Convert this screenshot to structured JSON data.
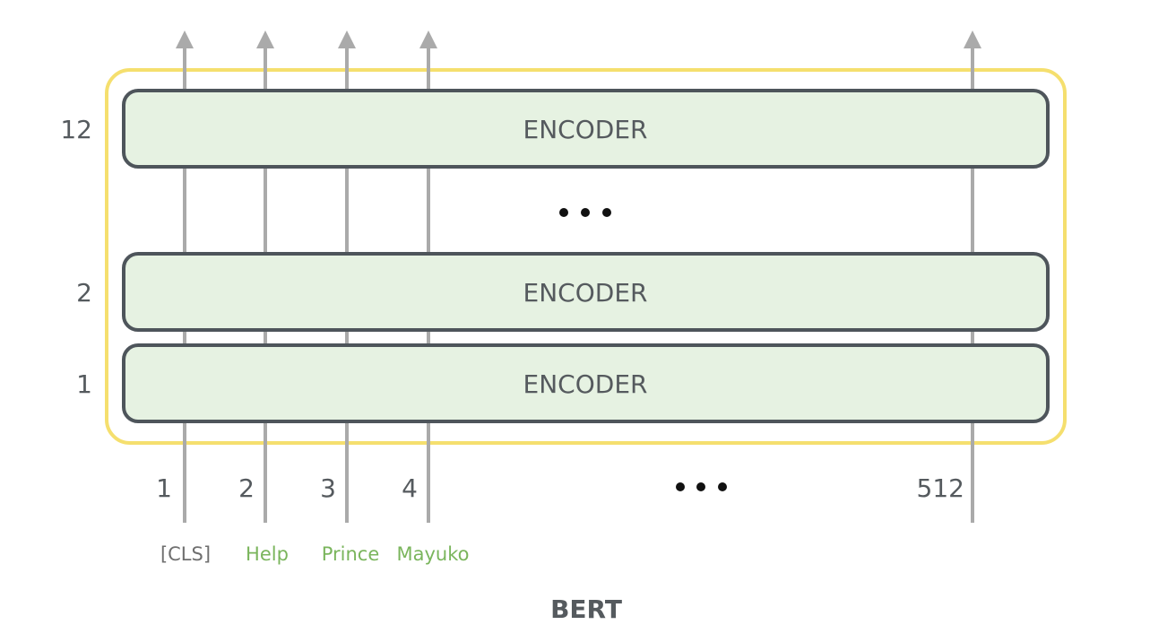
{
  "title": "BERT",
  "colors": {
    "arrow": "#aaaaaa",
    "frame": "#f5df6e",
    "encoder_fill": "#e6f2e2",
    "encoder_border": "#4e555b",
    "label": "#555a5e",
    "token_special": "#6f6f6f",
    "token_word": "#7ab55c",
    "dots": "#111111"
  },
  "layers": [
    {
      "number": "12",
      "label": "ENCODER"
    },
    {
      "number": "2",
      "label": "ENCODER"
    },
    {
      "number": "1",
      "label": "ENCODER"
    }
  ],
  "positions": [
    {
      "index": "1",
      "token": "[CLS]",
      "kind": "special"
    },
    {
      "index": "2",
      "token": "Help",
      "kind": "word"
    },
    {
      "index": "3",
      "token": "Prince",
      "kind": "word"
    },
    {
      "index": "4",
      "token": "Mayuko",
      "kind": "word"
    },
    {
      "index": "512",
      "token": "",
      "kind": "none"
    }
  ]
}
